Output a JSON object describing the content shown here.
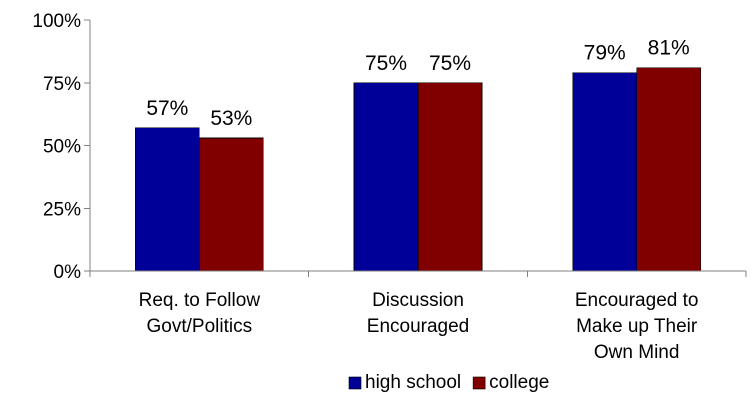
{
  "chart_data": {
    "type": "bar",
    "categories": [
      [
        "Req. to Follow",
        "Govt/Politics"
      ],
      [
        "Discussion",
        "Encouraged"
      ],
      [
        "Encouraged to",
        "Make up Their",
        "Own Mind"
      ]
    ],
    "series": [
      {
        "name": "high school",
        "color": "#000099",
        "values": [
          57,
          75,
          79
        ],
        "labels": [
          "57%",
          "75%",
          "79%"
        ]
      },
      {
        "name": "college",
        "color": "#800000",
        "values": [
          53,
          75,
          81
        ],
        "labels": [
          "53%",
          "75%",
          "81%"
        ]
      }
    ],
    "ylim": [
      0,
      100
    ],
    "yticks": [
      0,
      25,
      50,
      75,
      100
    ],
    "ytick_labels": [
      "0%",
      "25%",
      "50%",
      "75%",
      "100%"
    ],
    "grid": false,
    "legend_position": "bottom"
  }
}
